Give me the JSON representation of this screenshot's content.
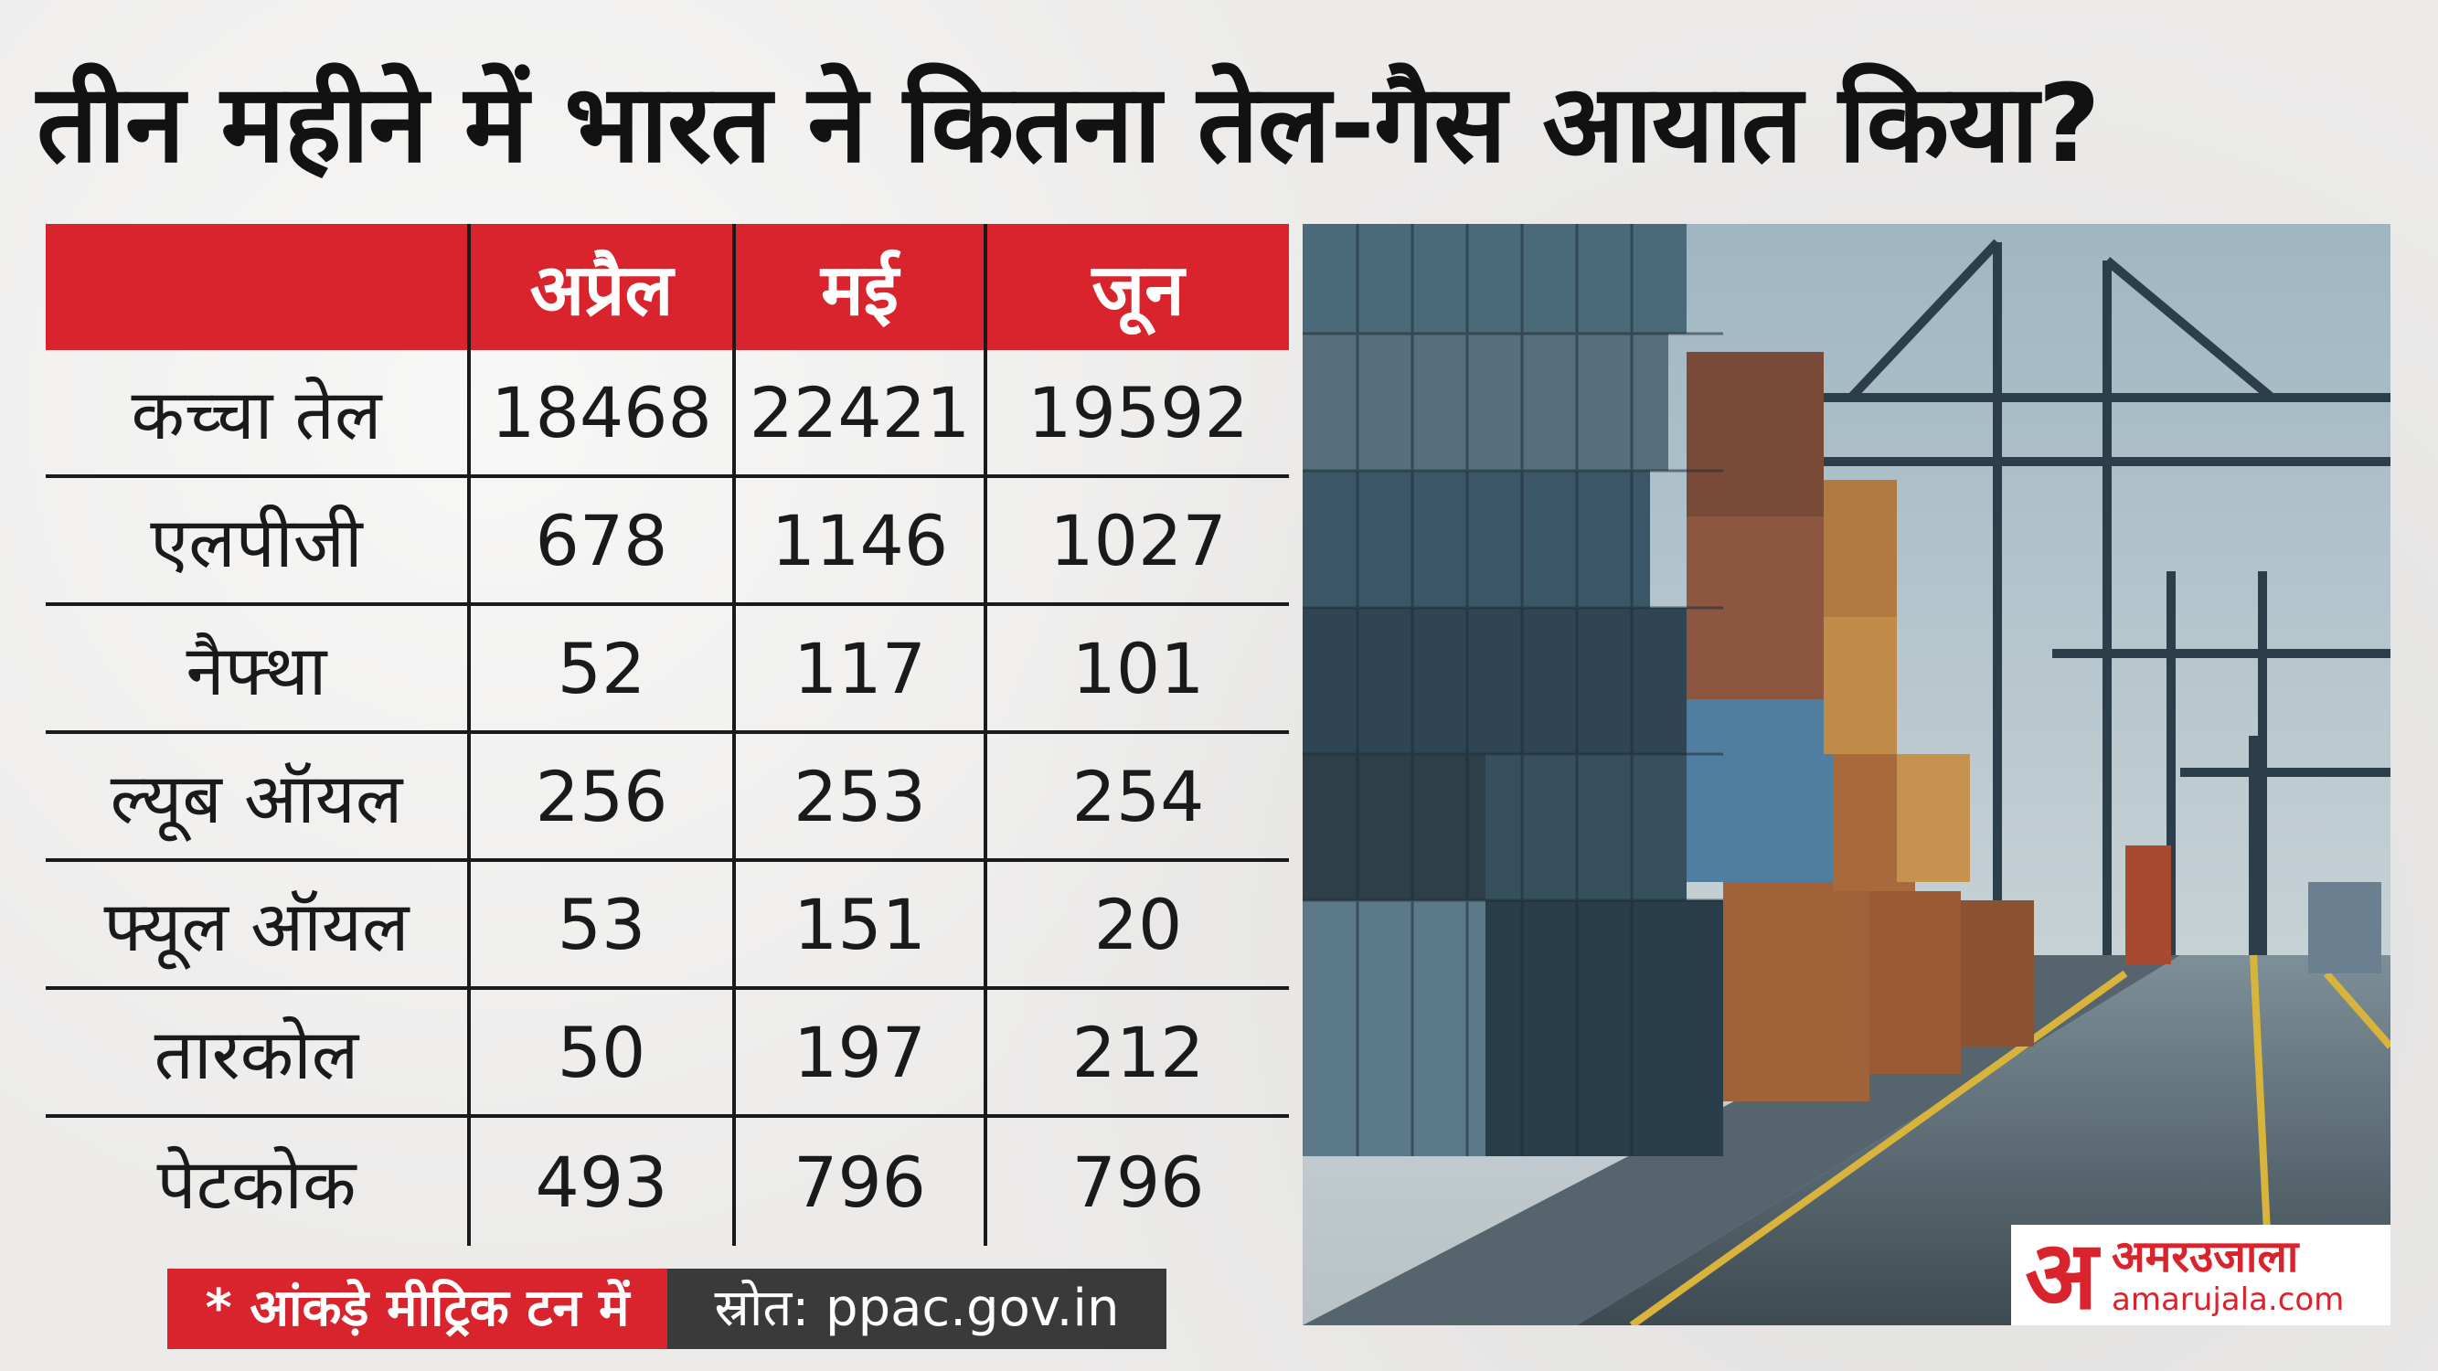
{
  "title": "तीन महीने में भारत ने कितना तेल-गैस आयात किया?",
  "table": {
    "columns": [
      "",
      "अप्रैल",
      "मई",
      "जून"
    ],
    "rows": [
      {
        "label": "कच्चा तेल",
        "values": [
          "18468",
          "22421",
          "19592"
        ]
      },
      {
        "label": "एलपीजी",
        "values": [
          "678",
          "1146",
          "1027"
        ]
      },
      {
        "label": "नैफ्था",
        "values": [
          "52",
          "117",
          "101"
        ]
      },
      {
        "label": "ल्यूब ऑयल",
        "values": [
          "256",
          "253",
          "254"
        ]
      },
      {
        "label": "फ्यूल ऑयल",
        "values": [
          "53",
          "151",
          "20"
        ]
      },
      {
        "label": "तारकोल",
        "values": [
          "50",
          "197",
          "212"
        ]
      },
      {
        "label": "पेटकोक",
        "values": [
          "493",
          "796",
          "796"
        ]
      }
    ]
  },
  "footnote": "* आंकड़े मीट्रिक टन में",
  "source": "स्रोत: ppac.gov.in",
  "logo": {
    "mark": "अ",
    "name": "अमरउजाला",
    "url": "amarujala.com"
  },
  "colors": {
    "accent": "#d9232d",
    "source_bg": "#3a3a3a",
    "background": "#ecebea"
  }
}
